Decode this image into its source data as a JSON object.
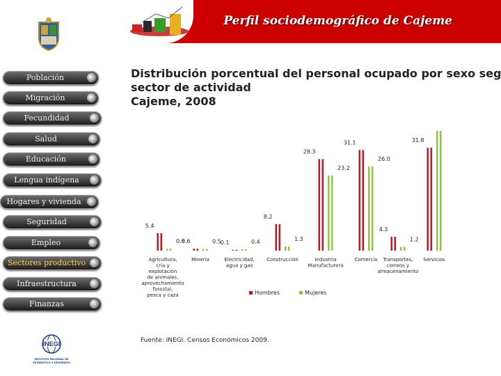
{
  "header": {
    "title": "Perfil sociodemográfico de Cajeme"
  },
  "nav": [
    {
      "label": "Población"
    },
    {
      "label": "Migración"
    },
    {
      "label": "Fecundidad"
    },
    {
      "label": "Salud"
    },
    {
      "label": "Educación"
    },
    {
      "label": "Lengua indígena"
    },
    {
      "label": "Hogares y vivienda"
    },
    {
      "label": "Seguridad"
    },
    {
      "label": "Empleo"
    },
    {
      "label": "Sectores productivos",
      "active": true
    },
    {
      "label": "Infraestructura"
    },
    {
      "label": "Finanzas"
    }
  ],
  "inegi": {
    "logo_text": "INEGI",
    "caption": "INSTITUTO NACIONAL DE ESTADÍSTICA Y GEOGRAFÍA"
  },
  "chart": {
    "title_lines": [
      "Distribución porcentual del personal ocupado por sexo según",
      "sector de actividad",
      "Cajeme, 2008"
    ],
    "source": "Fuente: INEGI. Censos Económicos 2009."
  },
  "colors": {
    "hombres": "#c4161c",
    "mujeres": "#8cc63f",
    "header": "#cc0000"
  },
  "chart_data": {
    "type": "bar",
    "title": "Distribución porcentual del personal ocupado por sexo según sector de actividad Cajeme, 2008",
    "categories": [
      "Agricultura, cría y explotación de animales, aprovechamiento forestal, pesca y caza",
      "Minería",
      "Electricidad, agua y gas",
      "Construcción",
      "Industria Manufacturera",
      "Comercio",
      "Transportes, correos y almacenamiento",
      "Servicios"
    ],
    "series": [
      {
        "name": "Hombres",
        "values": [
          5.4,
          0.6,
          0.1,
          8.2,
          28.3,
          31.1,
          4.3,
          31.8
        ]
      },
      {
        "name": "Mujeres",
        "values": [
          0.6,
          0.5,
          0.4,
          1.3,
          23.2,
          26.0,
          1.2,
          37.0
        ]
      }
    ],
    "ylim": [
      0,
      37.0
    ],
    "legend": "bottom",
    "grid": false
  }
}
